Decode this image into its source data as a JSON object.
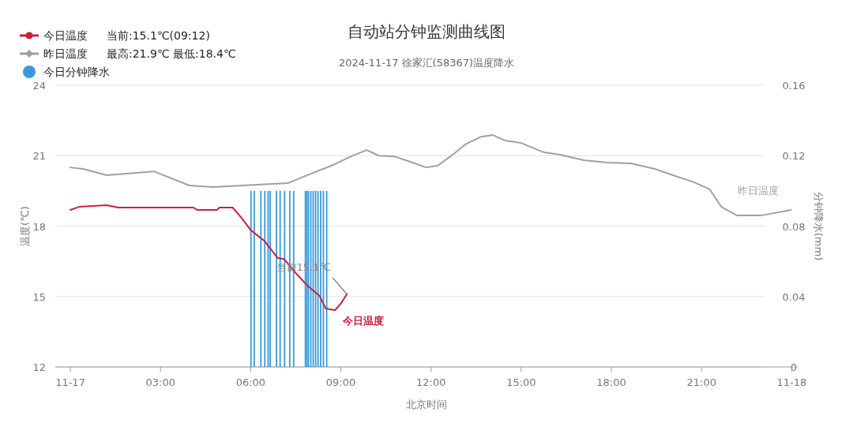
{
  "chart_data": {
    "type": "line",
    "title": "自动站分钟监测曲线图",
    "subtitle": "2024-11-17 徐家汇(58367)温度降水",
    "xlabel": "北京时间",
    "ylabel": "温度(℃)",
    "y2label": "分钟降水(mm)",
    "xlim": [
      -0.5,
      24.2
    ],
    "xticks": [
      {
        "value": 0,
        "label": "11-17"
      },
      {
        "value": 3,
        "label": "03:00"
      },
      {
        "value": 6,
        "label": "06:00"
      },
      {
        "value": 9,
        "label": "09:00"
      },
      {
        "value": 12,
        "label": "12:00"
      },
      {
        "value": 15,
        "label": "15:00"
      },
      {
        "value": 18,
        "label": "18:00"
      },
      {
        "value": 21,
        "label": "21:00"
      },
      {
        "value": 24,
        "label": "11-18"
      }
    ],
    "ylim": [
      12,
      24
    ],
    "yticks": [
      12,
      15,
      18,
      21,
      24
    ],
    "y2lim": [
      0,
      0.16
    ],
    "y2ticks": [
      0,
      0.04,
      0.08,
      0.12,
      0.16
    ],
    "grid": "y",
    "legend": "top left",
    "annotations": [
      "当前:15.1℃(09:12)",
      "最高:21.9℃ 最低:18.4℃",
      {
        "text": "当前15.1℃",
        "x": 9.2,
        "y": 15.1
      }
    ],
    "series": [
      {
        "name": "今日温度",
        "color": "#c8203f",
        "x": [
          0,
          0.29,
          1.21,
          1.6,
          4.09,
          4.22,
          4.88,
          4.96,
          5.4,
          5.67,
          6.01,
          6.45,
          6.9,
          7.11,
          7.5,
          7.89,
          8.29,
          8.5,
          8.81,
          9.0,
          9.2
        ],
        "values": [
          18.69,
          18.82,
          18.89,
          18.79,
          18.79,
          18.69,
          18.69,
          18.79,
          18.79,
          18.39,
          17.82,
          17.38,
          16.64,
          16.6,
          16.0,
          15.46,
          15.03,
          14.49,
          14.42,
          14.7,
          15.1
        ]
      },
      {
        "name": "昨日温度",
        "color": "#a0a0a0",
        "x": [
          0,
          0.42,
          1.21,
          2.78,
          3.96,
          4.75,
          7.24,
          7.89,
          8.68,
          9.34,
          9.86,
          10.26,
          10.78,
          11.31,
          11.83,
          12.22,
          12.75,
          13.14,
          13.67,
          14.06,
          14.45,
          14.98,
          15.76,
          16.29,
          17.08,
          17.86,
          18.65,
          19.44,
          19.97,
          20.75,
          21.27,
          21.66,
          22.19,
          22.97,
          23.98
        ],
        "values": [
          20.5,
          20.44,
          20.17,
          20.33,
          19.73,
          19.66,
          19.83,
          20.17,
          20.57,
          20.97,
          21.24,
          21.0,
          20.97,
          20.74,
          20.5,
          20.57,
          21.07,
          21.48,
          21.81,
          21.88,
          21.65,
          21.55,
          21.14,
          21.04,
          20.81,
          20.71,
          20.67,
          20.44,
          20.2,
          19.87,
          19.57,
          18.82,
          18.45,
          18.45,
          18.69
        ]
      },
      {
        "name": "今日分钟降水",
        "type": "bar",
        "axis": "y2",
        "color": "#3a9ad9",
        "x": [
          6.01,
          6.12,
          6.34,
          6.47,
          6.58,
          6.65,
          6.86,
          6.98,
          7.13,
          7.3,
          7.43,
          7.82,
          7.87,
          7.92,
          8.0,
          8.08,
          8.16,
          8.24,
          8.33,
          8.42,
          8.53
        ],
        "values": [
          0.1,
          0.1,
          0.1,
          0.1,
          0.1,
          0.1,
          0.1,
          0.1,
          0.1,
          0.1,
          0.1,
          0.1,
          0.1,
          0.1,
          0.1,
          0.1,
          0.1,
          0.1,
          0.1,
          0.1,
          0.1
        ]
      }
    ]
  }
}
